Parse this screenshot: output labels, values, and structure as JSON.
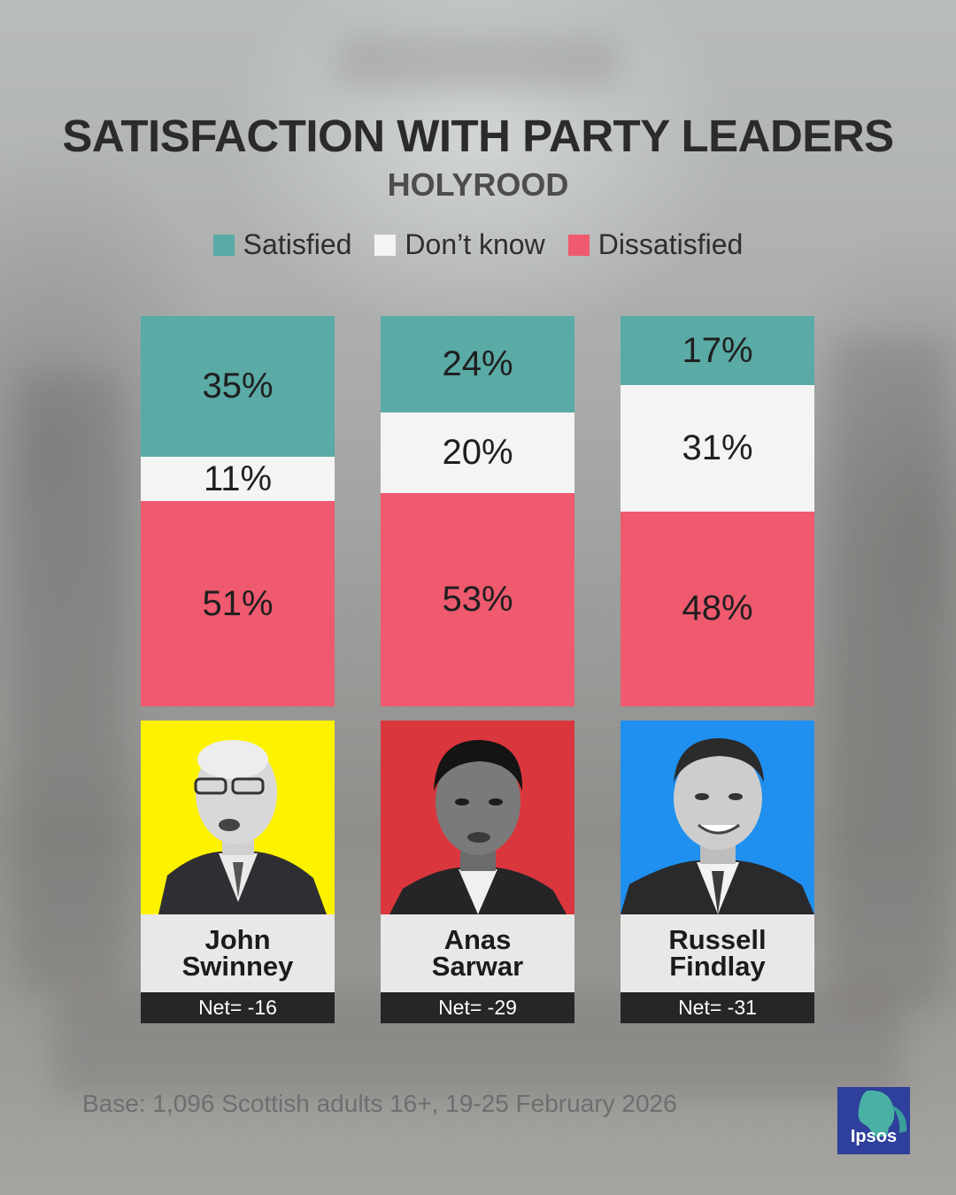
{
  "title": "SATISFACTION WITH PARTY LEADERS",
  "subtitle": "HOLYROOD",
  "legend": [
    {
      "label": "Satisfied",
      "color": "#5aaaa5"
    },
    {
      "label": "Don’t know",
      "color": "#f4f4f4"
    },
    {
      "label": "Dissatisfied",
      "color": "#ef5a6e"
    }
  ],
  "leaders": [
    {
      "first": "John",
      "last": "Swinney",
      "net": "Net= -16",
      "photo_bg": "#fdf200",
      "satisfied_label": "35%",
      "dontknow_label": "11%",
      "dissatisfied_label": "51%"
    },
    {
      "first": "Anas",
      "last": "Sarwar",
      "net": "Net= -29",
      "photo_bg": "#d9373d",
      "satisfied_label": "24%",
      "dontknow_label": "20%",
      "dissatisfied_label": "53%"
    },
    {
      "first": "Russell",
      "last": "Findlay",
      "net": "Net= -31",
      "photo_bg": "#1f90f0",
      "satisfied_label": "17%",
      "dontknow_label": "31%",
      "dissatisfied_label": "48%"
    }
  ],
  "chart_data": {
    "type": "bar",
    "stacked": true,
    "categories": [
      "John Swinney",
      "Anas Sarwar",
      "Russell Findlay"
    ],
    "series": [
      {
        "name": "Satisfied",
        "values": [
          35,
          24,
          17
        ],
        "color": "#5aaaa5"
      },
      {
        "name": "Don’t know",
        "values": [
          11,
          20,
          31
        ],
        "color": "#f4f4f4"
      },
      {
        "name": "Dissatisfied",
        "values": [
          51,
          53,
          48
        ],
        "color": "#ef5a6e"
      }
    ],
    "net": [
      -16,
      -29,
      -31
    ],
    "legend_position": "top-center",
    "grid": false
  },
  "footnote": "Base: 1,096 Scottish adults 16+, 19-25 February 2026",
  "logo": {
    "text": "Ipsos",
    "color": "#2e3f9c"
  }
}
